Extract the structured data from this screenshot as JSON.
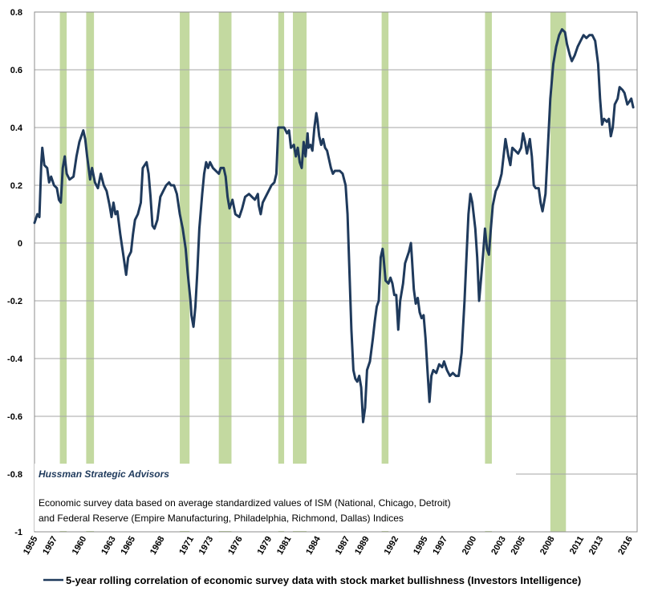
{
  "chart_data": {
    "type": "line",
    "title": "",
    "xlabel": "",
    "ylabel": "",
    "xlim": [
      1955.0,
      2016.8
    ],
    "ylim": [
      -1,
      0.8
    ],
    "y_ticks": [
      0.8,
      0.6,
      0.4,
      0.2,
      0,
      -0.2,
      -0.4,
      -0.6,
      -0.8,
      -1
    ],
    "y_tick_labels": [
      "0.8",
      "0.6",
      "0.4",
      "0.2",
      "0",
      "-0.2",
      "-0.4",
      "-0.6",
      "-0.8",
      "-1"
    ],
    "x_ticks": [
      1955,
      1957,
      1960,
      1963,
      1965,
      1968,
      1971,
      1973,
      1976,
      1979,
      1981,
      1984,
      1987,
      1989,
      1992,
      1995,
      1997,
      2000,
      2003,
      2005,
      2008,
      2011,
      2013,
      2016
    ],
    "x_tick_labels": [
      "1955",
      "1957",
      "1960",
      "1963",
      "1965",
      "1968",
      "1971",
      "1973",
      "1976",
      "1979",
      "1981",
      "1984",
      "1987",
      "1989",
      "1992",
      "1995",
      "1997",
      "2000",
      "2003",
      "2005",
      "2008",
      "2011",
      "2013",
      "2016"
    ],
    "grid": "horizontal",
    "legend_position": "bottom",
    "recessions": [
      [
        1957.6,
        1958.3
      ],
      [
        1960.3,
        1961.1
      ],
      [
        1969.9,
        1970.9
      ],
      [
        1973.9,
        1975.2
      ],
      [
        1980.0,
        1980.6
      ],
      [
        1981.5,
        1982.9
      ],
      [
        1990.6,
        1991.3
      ],
      [
        2001.2,
        2001.9
      ],
      [
        2007.9,
        2009.5
      ]
    ],
    "series": [
      {
        "name": "5-year rolling correlation of economic survey data with stock market bullishness (Investors Intelligence)",
        "color": "#1f3a5c",
        "points": [
          [
            1955.0,
            0.07
          ],
          [
            1955.3,
            0.1
          ],
          [
            1955.5,
            0.09
          ],
          [
            1955.7,
            0.28
          ],
          [
            1955.8,
            0.33
          ],
          [
            1956.0,
            0.27
          ],
          [
            1956.3,
            0.26
          ],
          [
            1956.5,
            0.21
          ],
          [
            1956.7,
            0.23
          ],
          [
            1957.0,
            0.2
          ],
          [
            1957.3,
            0.19
          ],
          [
            1957.5,
            0.15
          ],
          [
            1957.7,
            0.14
          ],
          [
            1957.9,
            0.26
          ],
          [
            1958.1,
            0.3
          ],
          [
            1958.3,
            0.24
          ],
          [
            1958.6,
            0.22
          ],
          [
            1959.0,
            0.23
          ],
          [
            1959.3,
            0.3
          ],
          [
            1959.6,
            0.35
          ],
          [
            1960.0,
            0.39
          ],
          [
            1960.2,
            0.36
          ],
          [
            1960.4,
            0.3
          ],
          [
            1960.7,
            0.22
          ],
          [
            1960.9,
            0.26
          ],
          [
            1961.2,
            0.21
          ],
          [
            1961.5,
            0.19
          ],
          [
            1961.8,
            0.24
          ],
          [
            1962.1,
            0.2
          ],
          [
            1962.4,
            0.18
          ],
          [
            1962.7,
            0.13
          ],
          [
            1962.9,
            0.09
          ],
          [
            1963.1,
            0.14
          ],
          [
            1963.3,
            0.1
          ],
          [
            1963.5,
            0.11
          ],
          [
            1963.8,
            0.03
          ],
          [
            1964.1,
            -0.04
          ],
          [
            1964.4,
            -0.11
          ],
          [
            1964.6,
            -0.05
          ],
          [
            1964.9,
            -0.03
          ],
          [
            1965.1,
            0.03
          ],
          [
            1965.3,
            0.08
          ],
          [
            1965.6,
            0.1
          ],
          [
            1965.9,
            0.14
          ],
          [
            1966.1,
            0.26
          ],
          [
            1966.3,
            0.27
          ],
          [
            1966.5,
            0.28
          ],
          [
            1966.7,
            0.24
          ],
          [
            1966.9,
            0.16
          ],
          [
            1967.1,
            0.06
          ],
          [
            1967.3,
            0.05
          ],
          [
            1967.6,
            0.08
          ],
          [
            1967.9,
            0.16
          ],
          [
            1968.2,
            0.18
          ],
          [
            1968.5,
            0.2
          ],
          [
            1968.8,
            0.21
          ],
          [
            1969.0,
            0.2
          ],
          [
            1969.3,
            0.2
          ],
          [
            1969.6,
            0.17
          ],
          [
            1969.9,
            0.1
          ],
          [
            1970.2,
            0.05
          ],
          [
            1970.5,
            -0.02
          ],
          [
            1970.7,
            -0.1
          ],
          [
            1971.0,
            -0.2
          ],
          [
            1971.1,
            -0.25
          ],
          [
            1971.3,
            -0.29
          ],
          [
            1971.5,
            -0.22
          ],
          [
            1971.7,
            -0.1
          ],
          [
            1971.9,
            0.05
          ],
          [
            1972.2,
            0.17
          ],
          [
            1972.4,
            0.24
          ],
          [
            1972.6,
            0.28
          ],
          [
            1972.8,
            0.26
          ],
          [
            1973.0,
            0.28
          ],
          [
            1973.3,
            0.26
          ],
          [
            1973.6,
            0.25
          ],
          [
            1973.9,
            0.24
          ],
          [
            1974.1,
            0.26
          ],
          [
            1974.4,
            0.26
          ],
          [
            1974.6,
            0.23
          ],
          [
            1974.8,
            0.16
          ],
          [
            1975.0,
            0.12
          ],
          [
            1975.3,
            0.15
          ],
          [
            1975.6,
            0.1
          ],
          [
            1976.0,
            0.09
          ],
          [
            1976.3,
            0.12
          ],
          [
            1976.6,
            0.16
          ],
          [
            1977.0,
            0.17
          ],
          [
            1977.3,
            0.16
          ],
          [
            1977.6,
            0.15
          ],
          [
            1977.9,
            0.17
          ],
          [
            1978.0,
            0.13
          ],
          [
            1978.2,
            0.1
          ],
          [
            1978.4,
            0.14
          ],
          [
            1978.7,
            0.16
          ],
          [
            1979.0,
            0.18
          ],
          [
            1979.3,
            0.2
          ],
          [
            1979.6,
            0.21
          ],
          [
            1979.8,
            0.24
          ],
          [
            1980.0,
            0.4
          ],
          [
            1980.3,
            0.4
          ],
          [
            1980.6,
            0.4
          ],
          [
            1980.9,
            0.38
          ],
          [
            1981.1,
            0.39
          ],
          [
            1981.3,
            0.33
          ],
          [
            1981.6,
            0.34
          ],
          [
            1981.8,
            0.3
          ],
          [
            1982.0,
            0.33
          ],
          [
            1982.2,
            0.28
          ],
          [
            1982.4,
            0.26
          ],
          [
            1982.6,
            0.35
          ],
          [
            1982.8,
            0.3
          ],
          [
            1983.0,
            0.38
          ],
          [
            1983.1,
            0.33
          ],
          [
            1983.3,
            0.34
          ],
          [
            1983.5,
            0.32
          ],
          [
            1983.7,
            0.4
          ],
          [
            1983.9,
            0.45
          ],
          [
            1984.0,
            0.43
          ],
          [
            1984.2,
            0.37
          ],
          [
            1984.4,
            0.34
          ],
          [
            1984.6,
            0.36
          ],
          [
            1984.8,
            0.33
          ],
          [
            1985.0,
            0.32
          ],
          [
            1985.2,
            0.29
          ],
          [
            1985.4,
            0.26
          ],
          [
            1985.6,
            0.24
          ],
          [
            1985.8,
            0.25
          ],
          [
            1986.0,
            0.25
          ],
          [
            1986.3,
            0.25
          ],
          [
            1986.6,
            0.24
          ],
          [
            1986.9,
            0.2
          ],
          [
            1987.1,
            0.1
          ],
          [
            1987.3,
            -0.1
          ],
          [
            1987.5,
            -0.3
          ],
          [
            1987.7,
            -0.44
          ],
          [
            1987.9,
            -0.47
          ],
          [
            1988.1,
            -0.48
          ],
          [
            1988.3,
            -0.46
          ],
          [
            1988.5,
            -0.5
          ],
          [
            1988.7,
            -0.62
          ],
          [
            1988.9,
            -0.57
          ],
          [
            1989.1,
            -0.44
          ],
          [
            1989.4,
            -0.41
          ],
          [
            1989.7,
            -0.33
          ],
          [
            1989.9,
            -0.27
          ],
          [
            1990.1,
            -0.22
          ],
          [
            1990.3,
            -0.2
          ],
          [
            1990.5,
            -0.05
          ],
          [
            1990.7,
            -0.02
          ],
          [
            1990.8,
            -0.05
          ],
          [
            1991.0,
            -0.13
          ],
          [
            1991.3,
            -0.14
          ],
          [
            1991.5,
            -0.12
          ],
          [
            1991.7,
            -0.14
          ],
          [
            1991.9,
            -0.18
          ],
          [
            1992.1,
            -0.18
          ],
          [
            1992.3,
            -0.3
          ],
          [
            1992.5,
            -0.2
          ],
          [
            1992.8,
            -0.14
          ],
          [
            1993.0,
            -0.07
          ],
          [
            1993.2,
            -0.05
          ],
          [
            1993.4,
            -0.03
          ],
          [
            1993.6,
            0.0
          ],
          [
            1993.7,
            -0.05
          ],
          [
            1993.9,
            -0.16
          ],
          [
            1994.1,
            -0.21
          ],
          [
            1994.3,
            -0.19
          ],
          [
            1994.5,
            -0.24
          ],
          [
            1994.7,
            -0.26
          ],
          [
            1994.9,
            -0.25
          ],
          [
            1995.1,
            -0.33
          ],
          [
            1995.3,
            -0.44
          ],
          [
            1995.5,
            -0.55
          ],
          [
            1995.7,
            -0.46
          ],
          [
            1995.9,
            -0.44
          ],
          [
            1996.2,
            -0.45
          ],
          [
            1996.5,
            -0.42
          ],
          [
            1996.8,
            -0.43
          ],
          [
            1997.0,
            -0.41
          ],
          [
            1997.3,
            -0.44
          ],
          [
            1997.6,
            -0.46
          ],
          [
            1997.9,
            -0.45
          ],
          [
            1998.2,
            -0.46
          ],
          [
            1998.5,
            -0.46
          ],
          [
            1998.8,
            -0.38
          ],
          [
            1999.1,
            -0.2
          ],
          [
            1999.3,
            -0.05
          ],
          [
            1999.5,
            0.1
          ],
          [
            1999.7,
            0.17
          ],
          [
            1999.9,
            0.14
          ],
          [
            2000.2,
            0.05
          ],
          [
            2000.4,
            -0.05
          ],
          [
            2000.6,
            -0.2
          ],
          [
            2000.8,
            -0.12
          ],
          [
            2001.0,
            -0.04
          ],
          [
            2001.2,
            0.05
          ],
          [
            2001.4,
            -0.02
          ],
          [
            2001.6,
            -0.04
          ],
          [
            2001.8,
            0.05
          ],
          [
            2002.0,
            0.13
          ],
          [
            2002.3,
            0.18
          ],
          [
            2002.6,
            0.2
          ],
          [
            2002.9,
            0.24
          ],
          [
            2003.1,
            0.3
          ],
          [
            2003.3,
            0.36
          ],
          [
            2003.6,
            0.3
          ],
          [
            2003.8,
            0.27
          ],
          [
            2004.0,
            0.33
          ],
          [
            2004.3,
            0.32
          ],
          [
            2004.6,
            0.31
          ],
          [
            2004.9,
            0.33
          ],
          [
            2005.1,
            0.38
          ],
          [
            2005.3,
            0.35
          ],
          [
            2005.5,
            0.31
          ],
          [
            2005.8,
            0.36
          ],
          [
            2006.0,
            0.3
          ],
          [
            2006.2,
            0.2
          ],
          [
            2006.4,
            0.19
          ],
          [
            2006.7,
            0.19
          ],
          [
            2006.9,
            0.14
          ],
          [
            2007.1,
            0.11
          ],
          [
            2007.4,
            0.17
          ],
          [
            2007.6,
            0.3
          ],
          [
            2007.9,
            0.5
          ],
          [
            2008.2,
            0.62
          ],
          [
            2008.5,
            0.68
          ],
          [
            2008.8,
            0.72
          ],
          [
            2009.1,
            0.74
          ],
          [
            2009.4,
            0.73
          ],
          [
            2009.6,
            0.69
          ],
          [
            2009.9,
            0.65
          ],
          [
            2010.1,
            0.63
          ],
          [
            2010.4,
            0.65
          ],
          [
            2010.7,
            0.68
          ],
          [
            2011.0,
            0.7
          ],
          [
            2011.3,
            0.72
          ],
          [
            2011.6,
            0.71
          ],
          [
            2011.9,
            0.72
          ],
          [
            2012.2,
            0.72
          ],
          [
            2012.5,
            0.7
          ],
          [
            2012.8,
            0.62
          ],
          [
            2013.0,
            0.5
          ],
          [
            2013.2,
            0.41
          ],
          [
            2013.4,
            0.43
          ],
          [
            2013.7,
            0.42
          ],
          [
            2013.9,
            0.43
          ],
          [
            2014.1,
            0.37
          ],
          [
            2014.3,
            0.4
          ],
          [
            2014.5,
            0.48
          ],
          [
            2014.8,
            0.5
          ],
          [
            2015.0,
            0.54
          ],
          [
            2015.3,
            0.53
          ],
          [
            2015.5,
            0.52
          ],
          [
            2015.8,
            0.48
          ],
          [
            2016.0,
            0.49
          ],
          [
            2016.2,
            0.5
          ],
          [
            2016.4,
            0.47
          ]
        ]
      }
    ]
  },
  "notes": {
    "brand": "Hussman Strategic Advisors",
    "line1": "Economic  survey data based on average standardized values of ISM (National, Chicago, Detroit)",
    "line2": "and Federal Reserve (Empire Manufacturing, Philadelphia, Richmond, Dallas) Indices"
  },
  "colors": {
    "line": "#1f3a5c",
    "recession": "#c3d9a0",
    "grid": "#a6a6a6",
    "frame": "#8c8c8c"
  }
}
